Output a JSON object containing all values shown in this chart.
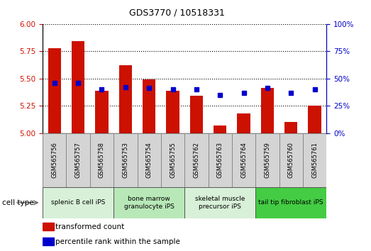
{
  "title": "GDS3770 / 10518331",
  "samples": [
    "GSM565756",
    "GSM565757",
    "GSM565758",
    "GSM565753",
    "GSM565754",
    "GSM565755",
    "GSM565762",
    "GSM565763",
    "GSM565764",
    "GSM565759",
    "GSM565760",
    "GSM565761"
  ],
  "transformed_count": [
    5.78,
    5.84,
    5.39,
    5.62,
    5.49,
    5.39,
    5.34,
    5.07,
    5.18,
    5.41,
    5.1,
    5.25
  ],
  "percentile_rank": [
    46,
    46,
    40,
    42,
    41,
    40,
    40,
    35,
    37,
    41,
    37,
    40
  ],
  "cell_types": [
    {
      "label": "splenic B cell iPS",
      "start": 0,
      "end": 3,
      "color": "#d8f0d8"
    },
    {
      "label": "bone marrow\ngranulocyte iPS",
      "start": 3,
      "end": 6,
      "color": "#b8e8b8"
    },
    {
      "label": "skeletal muscle\nprecursor iPS",
      "start": 6,
      "end": 9,
      "color": "#d8f0d8"
    },
    {
      "label": "tail tip fibroblast iPS",
      "start": 9,
      "end": 12,
      "color": "#44cc44"
    }
  ],
  "ylim_left": [
    5.0,
    6.0
  ],
  "ylim_right": [
    0,
    100
  ],
  "yticks_left": [
    5.0,
    5.25,
    5.5,
    5.75,
    6.0
  ],
  "yticks_right": [
    0,
    25,
    50,
    75,
    100
  ],
  "bar_color": "#cc1100",
  "dot_color": "#0000cc",
  "bar_width": 0.55,
  "legend_labels": [
    "transformed count",
    "percentile rank within the sample"
  ],
  "cell_type_label": "cell type",
  "bar_bottom": 5.0
}
